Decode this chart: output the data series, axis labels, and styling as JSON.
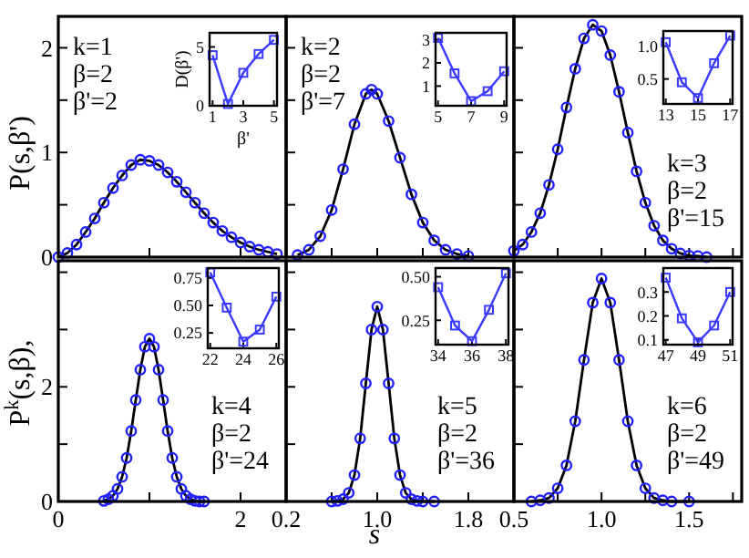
{
  "chart_data": [
    {
      "type": "line",
      "x": [
        0,
        0.1,
        0.2,
        0.3,
        0.4,
        0.5,
        0.6,
        0.7,
        0.8,
        0.9,
        1.0,
        1.1,
        1.2,
        1.3,
        1.4,
        1.5,
        1.6,
        1.7,
        1.8,
        1.9,
        2.0,
        2.1,
        2.2,
        2.3,
        2.4
      ],
      "series": [
        {
          "color": "#000000",
          "values": [
            0,
            0.04,
            0.12,
            0.24,
            0.37,
            0.52,
            0.66,
            0.78,
            0.88,
            0.93,
            0.92,
            0.88,
            0.81,
            0.72,
            0.62,
            0.52,
            0.42,
            0.33,
            0.25,
            0.19,
            0.14,
            0.1,
            0.07,
            0.05,
            0.03
          ]
        },
        {
          "type": "scatter",
          "color": "#2020ff",
          "marker": "circle",
          "values": [
            0,
            0.04,
            0.12,
            0.24,
            0.37,
            0.52,
            0.66,
            0.78,
            0.88,
            0.93,
            0.92,
            0.88,
            0.81,
            0.72,
            0.62,
            0.52,
            0.42,
            0.33,
            0.25,
            0.19,
            0.14,
            0.1,
            0.07,
            0.05,
            0.03
          ]
        }
      ],
      "xlim": [
        0,
        2.5
      ],
      "ylim": [
        0,
        2.3
      ],
      "xticks": [
        {
          "value": 0,
          "label": null
        },
        {
          "value": 1,
          "label": null
        },
        {
          "value": 2,
          "label": null
        }
      ],
      "yticks": [
        0,
        {
          "value": 0.5,
          "label": null
        },
        1,
        {
          "value": 1.5,
          "label": null
        },
        2
      ],
      "tick_labels": "y",
      "ylabel": "P(s,β')",
      "annotations": [
        "k=1",
        "β=2",
        "β'=2"
      ]
    },
    {
      "type": "line",
      "x": [
        1,
        2,
        3,
        4,
        5
      ],
      "values": [
        4.3,
        0.15,
        2.8,
        4.4,
        5.6
      ],
      "color": "#3a3aff",
      "marker": "square",
      "xlim": [
        0.8,
        5.2
      ],
      "ylim": [
        0,
        6.2
      ],
      "xticks": [
        1,
        3,
        5
      ],
      "yticks": [
        0,
        5
      ],
      "xlabel": "β'",
      "ylabel": "D(β')"
    },
    {
      "type": "line",
      "x": [
        0.3,
        0.4,
        0.5,
        0.6,
        0.7,
        0.8,
        0.9,
        0.95,
        1.0,
        1.1,
        1.2,
        1.3,
        1.4,
        1.5,
        1.6,
        1.7,
        1.8
      ],
      "series": [
        {
          "color": "#000000",
          "values": [
            0.02,
            0.07,
            0.2,
            0.45,
            0.84,
            1.27,
            1.56,
            1.6,
            1.56,
            1.3,
            0.95,
            0.6,
            0.33,
            0.16,
            0.07,
            0.03,
            0.01
          ]
        },
        {
          "type": "scatter",
          "color": "#2020ff",
          "marker": "circle",
          "values": [
            0.02,
            0.07,
            0.2,
            0.45,
            0.84,
            1.27,
            1.56,
            1.6,
            1.56,
            1.3,
            0.95,
            0.6,
            0.33,
            0.16,
            0.07,
            0.03,
            0.01
          ]
        }
      ],
      "xlim": [
        0.2,
        2.2
      ],
      "ylim": [
        0,
        2.3
      ],
      "xticks": [
        {
          "value": 0.2,
          "label": null
        },
        {
          "value": 0.6,
          "label": null
        },
        {
          "value": 1,
          "label": null
        },
        {
          "value": 1.4,
          "label": null
        },
        {
          "value": 1.8,
          "label": null
        }
      ],
      "yticks": [
        {
          "value": 0,
          "label": null
        },
        {
          "value": 0.5,
          "label": null
        },
        {
          "value": 1,
          "label": null
        },
        {
          "value": 1.5,
          "label": null
        },
        {
          "value": 2,
          "label": null
        }
      ],
      "tick_labels": false,
      "annotations": [
        "k=2",
        "β=2",
        "β'=7"
      ]
    },
    {
      "type": "line",
      "x": [
        5,
        6,
        7,
        8,
        9
      ],
      "values": [
        3.08,
        1.55,
        0.35,
        0.78,
        1.64
      ],
      "color": "#3a3aff",
      "marker": "square",
      "xlim": [
        4.85,
        9.15
      ],
      "ylim": [
        0.15,
        3.3
      ],
      "xticks": [
        5,
        7,
        9
      ],
      "yticks": [
        1,
        2,
        3
      ]
    },
    {
      "type": "line",
      "x": [
        0.5,
        0.55,
        0.6,
        0.65,
        0.7,
        0.75,
        0.8,
        0.85,
        0.9,
        0.95,
        1.0,
        1.05,
        1.1,
        1.15,
        1.2,
        1.25,
        1.3,
        1.35,
        1.4,
        1.45,
        1.5,
        1.55,
        1.6
      ],
      "series": [
        {
          "color": "#000000",
          "values": [
            0.06,
            0.12,
            0.24,
            0.42,
            0.69,
            1.03,
            1.43,
            1.8,
            2.09,
            2.22,
            2.16,
            1.93,
            1.58,
            1.19,
            0.82,
            0.52,
            0.3,
            0.16,
            0.08,
            0.035,
            0.015,
            0.01,
            0
          ]
        },
        {
          "type": "scatter",
          "color": "#2020ff",
          "marker": "circle",
          "values": [
            0.06,
            0.12,
            0.24,
            0.42,
            0.69,
            1.03,
            1.43,
            1.8,
            2.09,
            2.22,
            2.16,
            1.93,
            1.58,
            1.19,
            0.82,
            0.52,
            0.3,
            0.16,
            0.08,
            0.035,
            0.015,
            0.01,
            0
          ]
        }
      ],
      "xlim": [
        0.5,
        1.8
      ],
      "ylim": [
        0,
        2.3
      ],
      "xticks": [
        {
          "value": 0.5,
          "label": null
        },
        {
          "value": 0.75,
          "label": null
        },
        {
          "value": 1,
          "label": null
        },
        {
          "value": 1.25,
          "label": null
        },
        {
          "value": 1.5,
          "label": null
        },
        {
          "value": 1.75,
          "label": null
        }
      ],
      "yticks": [
        {
          "value": 0,
          "label": null
        },
        {
          "value": 0.5,
          "label": null
        },
        {
          "value": 1,
          "label": null
        },
        {
          "value": 1.5,
          "label": null
        },
        {
          "value": 2,
          "label": null
        }
      ],
      "tick_labels": false,
      "annotations": [
        "k=3",
        "β=2",
        "β'=15"
      ]
    },
    {
      "type": "line",
      "x": [
        13,
        14,
        15,
        16,
        17
      ],
      "values": [
        1.06,
        0.45,
        0.21,
        0.74,
        1.16
      ],
      "color": "#3a3aff",
      "marker": "square",
      "xlim": [
        12.85,
        17.15
      ],
      "ylim": [
        0.12,
        1.23
      ],
      "xticks": [
        13,
        15,
        17
      ],
      "yticks": [
        {
          "value": 0.5,
          "label": "0.5"
        },
        {
          "value": 1,
          "label": "1.0"
        }
      ]
    },
    {
      "type": "line",
      "x": [
        0.5,
        0.55,
        0.6,
        0.65,
        0.7,
        0.75,
        0.8,
        0.85,
        0.9,
        0.95,
        1.0,
        1.05,
        1.1,
        1.15,
        1.2,
        1.25,
        1.3,
        1.35,
        1.4,
        1.45,
        1.5,
        1.55,
        1.6
      ],
      "series": [
        {
          "color": "#000000",
          "values": [
            0.01,
            0.04,
            0.1,
            0.22,
            0.43,
            0.76,
            1.23,
            1.77,
            2.3,
            2.7,
            2.84,
            2.7,
            2.3,
            1.77,
            1.23,
            0.76,
            0.43,
            0.22,
            0.1,
            0.04,
            0.01,
            0,
            0
          ]
        },
        {
          "type": "scatter",
          "color": "#2020ff",
          "marker": "circle",
          "values": [
            0.01,
            0.04,
            0.1,
            0.22,
            0.43,
            0.76,
            1.23,
            1.77,
            2.3,
            2.7,
            2.84,
            2.7,
            2.3,
            1.77,
            1.23,
            0.76,
            0.43,
            0.22,
            0.1,
            0.04,
            0.01,
            0,
            0
          ]
        }
      ],
      "xlim": [
        0,
        2.5
      ],
      "ylim": [
        0,
        4.2
      ],
      "xticks": [
        {
          "value": 0,
          "label": "0"
        },
        {
          "value": 1,
          "label": null
        },
        {
          "value": 2,
          "label": "2"
        }
      ],
      "yticks": [
        0,
        {
          "value": 1,
          "label": null
        },
        2,
        {
          "value": 3,
          "label": null
        },
        {
          "value": 4,
          "label": null
        }
      ],
      "ylabel": "P$^{k}$(s,β),",
      "annotations": [
        "k=4",
        "β=2",
        "β'=24"
      ]
    },
    {
      "type": "line",
      "x": [
        22,
        23,
        24,
        25,
        26
      ],
      "values": [
        0.8,
        0.48,
        0.17,
        0.28,
        0.58
      ],
      "color": "#3a3aff",
      "marker": "square",
      "xlim": [
        21.85,
        26.15
      ],
      "ylim": [
        0.11,
        0.84
      ],
      "xticks": [
        22,
        24,
        26
      ],
      "yticks": [
        {
          "value": 0.25,
          "label": "0.25"
        },
        {
          "value": 0.5,
          "label": "0.50"
        },
        {
          "value": 0.75,
          "label": "0.75"
        }
      ]
    },
    {
      "type": "line",
      "x": [
        0.6,
        0.65,
        0.7,
        0.75,
        0.8,
        0.85,
        0.9,
        0.95,
        1.0,
        1.05,
        1.1,
        1.15,
        1.2,
        1.25,
        1.3,
        1.35,
        1.4,
        1.5
      ],
      "series": [
        {
          "color": "#000000",
          "values": [
            0,
            0.01,
            0.04,
            0.15,
            0.46,
            1.1,
            2.06,
            3.0,
            3.4,
            3.0,
            2.06,
            1.1,
            0.46,
            0.15,
            0.04,
            0.01,
            0,
            0
          ]
        },
        {
          "type": "scatter",
          "color": "#2020ff",
          "marker": "circle",
          "values": [
            0,
            0.01,
            0.04,
            0.15,
            0.46,
            1.1,
            2.06,
            3.0,
            3.4,
            3.0,
            2.06,
            1.1,
            0.46,
            0.15,
            0.04,
            0.01,
            0,
            0
          ]
        }
      ],
      "xlim": [
        0.2,
        2.2
      ],
      "ylim": [
        0,
        4.2
      ],
      "xticks": [
        {
          "value": 0.2,
          "label": "0.2"
        },
        {
          "value": 0.6,
          "label": null
        },
        {
          "value": 1,
          "label": "1.0"
        },
        {
          "value": 1.4,
          "label": null
        },
        {
          "value": 1.8,
          "label": "1.8"
        }
      ],
      "yticks": [
        {
          "value": 0,
          "label": null
        },
        {
          "value": 1,
          "label": null
        },
        {
          "value": 2,
          "label": null
        },
        {
          "value": 3,
          "label": null
        },
        {
          "value": 4,
          "label": null
        }
      ],
      "tick_labels": "x",
      "xlabel": "s",
      "annotations": [
        "k=5",
        "β=2",
        "β'=36"
      ]
    },
    {
      "type": "line",
      "x": [
        34,
        35,
        36,
        37,
        38
      ],
      "values": [
        0.44,
        0.22,
        0.13,
        0.31,
        0.52
      ],
      "color": "#3a3aff",
      "marker": "square",
      "xlim": [
        33.85,
        38.15
      ],
      "ylim": [
        0.11,
        0.55
      ],
      "xticks": [
        34,
        36,
        38
      ],
      "yticks": [
        {
          "value": 0.25,
          "label": "0.25"
        },
        {
          "value": 0.5,
          "label": "0.50"
        }
      ]
    },
    {
      "type": "line",
      "x": [
        0.6,
        0.65,
        0.7,
        0.75,
        0.8,
        0.85,
        0.9,
        0.95,
        1.0,
        1.05,
        1.1,
        1.15,
        1.2,
        1.25,
        1.3,
        1.35,
        1.4,
        1.5
      ],
      "series": [
        {
          "color": "#000000",
          "values": [
            0,
            0.02,
            0.06,
            0.23,
            0.63,
            1.4,
            2.47,
            3.47,
            3.89,
            3.47,
            2.47,
            1.4,
            0.63,
            0.23,
            0.06,
            0.02,
            0,
            0
          ]
        },
        {
          "type": "scatter",
          "color": "#2020ff",
          "marker": "circle",
          "values": [
            0,
            0.02,
            0.06,
            0.23,
            0.63,
            1.4,
            2.47,
            3.47,
            3.89,
            3.47,
            2.47,
            1.4,
            0.63,
            0.23,
            0.06,
            0.02,
            0,
            0
          ]
        }
      ],
      "xlim": [
        0.5,
        1.8
      ],
      "ylim": [
        0,
        4.2
      ],
      "xticks": [
        {
          "value": 0.5,
          "label": "0.5"
        },
        {
          "value": 0.75,
          "label": null
        },
        {
          "value": 1,
          "label": "1.0"
        },
        {
          "value": 1.25,
          "label": null
        },
        {
          "value": 1.5,
          "label": "1.5"
        },
        {
          "value": 1.75,
          "label": null
        }
      ],
      "yticks": [
        {
          "value": 0,
          "label": null
        },
        {
          "value": 1,
          "label": null
        },
        {
          "value": 2,
          "label": null
        },
        {
          "value": 3,
          "label": null
        },
        {
          "value": 4,
          "label": null
        }
      ],
      "tick_labels": "x",
      "annotations": [
        "k=6",
        "β=2",
        "β'=49"
      ]
    },
    {
      "type": "line",
      "x": [
        47,
        48,
        49,
        50,
        51
      ],
      "values": [
        0.36,
        0.19,
        0.09,
        0.16,
        0.3
      ],
      "color": "#3a3aff",
      "marker": "square",
      "xlim": [
        46.85,
        51.15
      ],
      "ylim": [
        0.08,
        0.4
      ],
      "xticks": [
        47,
        49,
        51
      ],
      "yticks": [
        0.1,
        0.2,
        0.3
      ]
    }
  ]
}
